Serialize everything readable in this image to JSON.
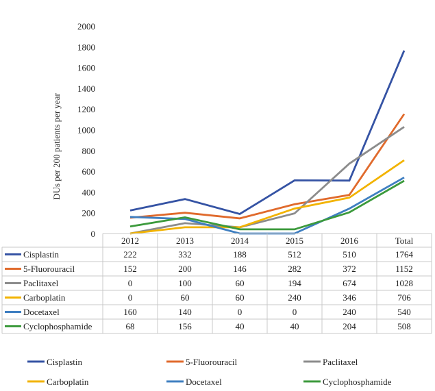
{
  "chart_data": {
    "type": "line",
    "title": "",
    "xlabel": "",
    "ylabel": "DUs per 200 patients per year",
    "ylim": [
      0,
      2000
    ],
    "yticks": [
      0,
      200,
      400,
      600,
      800,
      1000,
      1200,
      1400,
      1600,
      1800,
      2000
    ],
    "grid": false,
    "legend_position": "bottom",
    "categories": [
      "2012",
      "2013",
      "2014",
      "2015",
      "2016",
      "Total"
    ],
    "series": [
      {
        "name": "Cisplastin",
        "color": "#3553a4",
        "values": [
          222,
          332,
          188,
          512,
          510,
          1764
        ]
      },
      {
        "name": "5-Fluorouracil",
        "color": "#e06a2c",
        "values": [
          152,
          200,
          146,
          282,
          372,
          1152
        ]
      },
      {
        "name": "Paclitaxel",
        "color": "#8c8c8c",
        "values": [
          0,
          100,
          60,
          194,
          674,
          1028
        ]
      },
      {
        "name": "Carboplatin",
        "color": "#f2b300",
        "values": [
          0,
          60,
          60,
          240,
          346,
          706
        ]
      },
      {
        "name": "Docetaxel",
        "color": "#3f7fc1",
        "values": [
          160,
          140,
          0,
          0,
          240,
          540
        ]
      },
      {
        "name": "Cyclophosphamide",
        "color": "#3c9a3c",
        "values": [
          68,
          156,
          40,
          40,
          204,
          508
        ]
      }
    ]
  }
}
